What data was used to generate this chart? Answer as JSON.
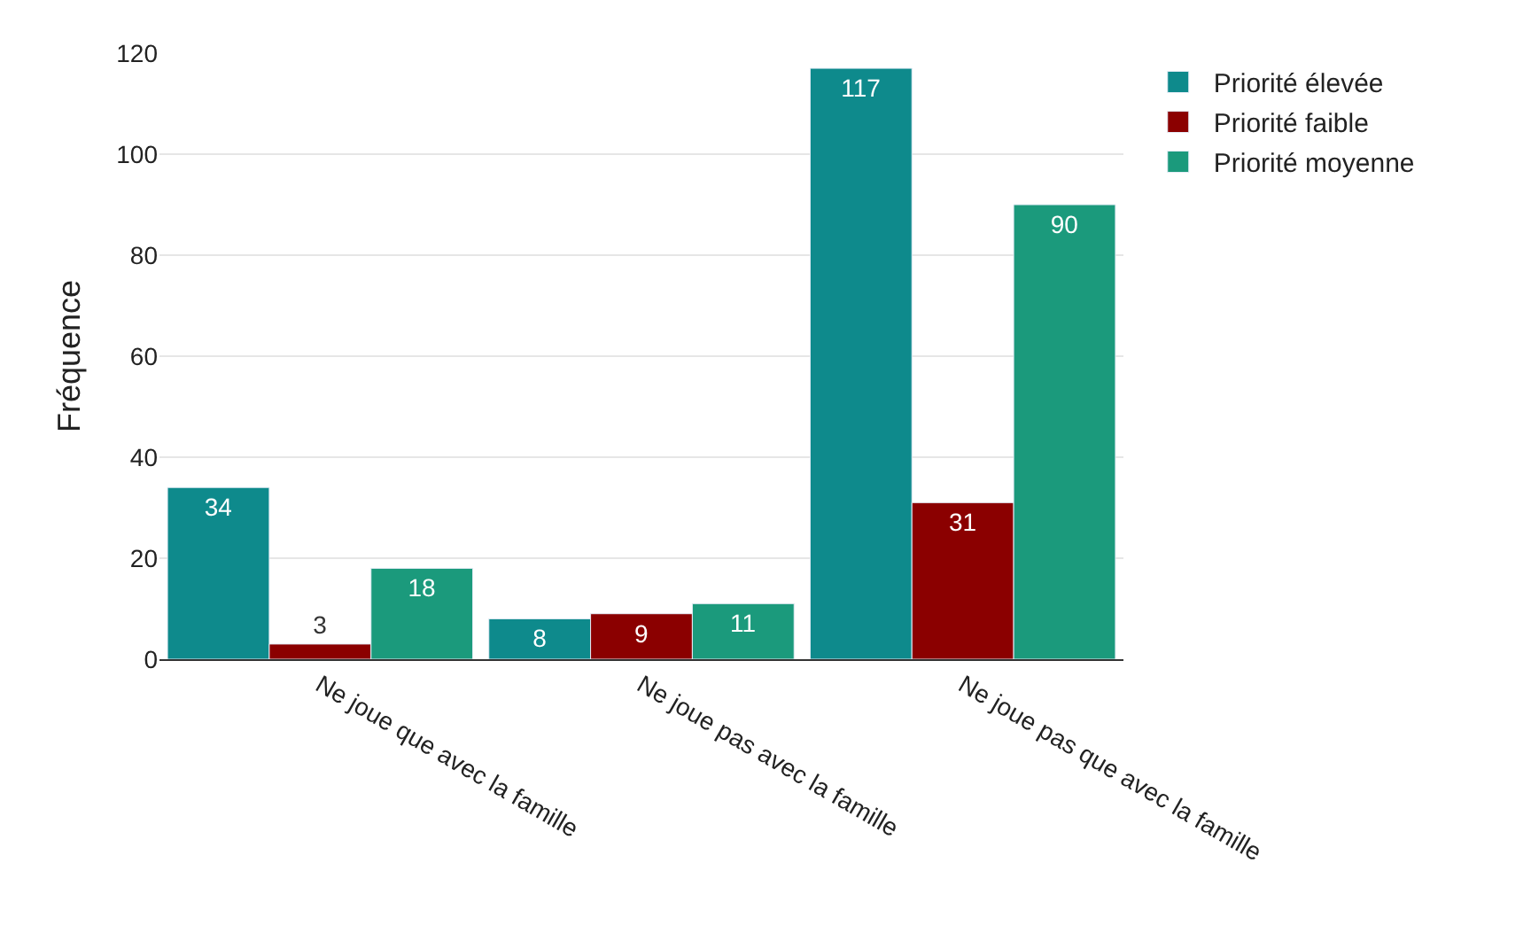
{
  "chart_data": {
    "type": "bar",
    "ylabel": "Fréquence",
    "categories": [
      "Ne joue que avec la famille",
      "Ne joue pas avec la famille",
      "Ne joue pas que avec la famille"
    ],
    "series": [
      {
        "name": "Priorité élevée",
        "color": "#0e8a8c",
        "values": [
          34,
          8,
          117
        ]
      },
      {
        "name": "Priorité faible",
        "color": "#8b0000",
        "values": [
          3,
          9,
          31
        ]
      },
      {
        "name": "Priorité moyenne",
        "color": "#1b9a7c",
        "values": [
          18,
          11,
          90
        ]
      }
    ],
    "ylim": [
      0,
      120
    ],
    "yticks": [
      0,
      20,
      40,
      60,
      80,
      100,
      120
    ],
    "grid": "y",
    "legend": "top right",
    "data_labels": true
  }
}
